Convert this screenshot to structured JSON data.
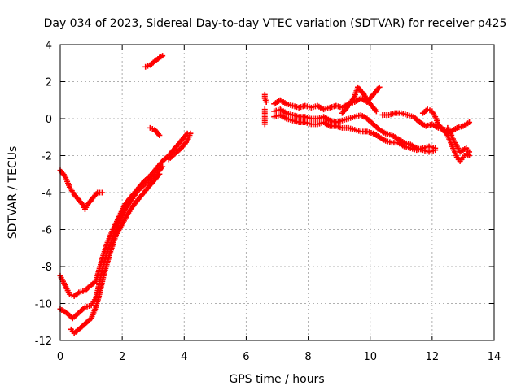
{
  "chart_data": {
    "type": "scatter",
    "title": "Day 034 of 2023, Sidereal Day-to-day VTEC variation (SDTVAR) for receiver p425",
    "xlabel": "GPS time / hours",
    "ylabel": "SDTVAR / TECUs",
    "xlim": [
      0,
      14
    ],
    "ylim": [
      -12,
      4
    ],
    "xticks": [
      0,
      2,
      4,
      6,
      8,
      10,
      12,
      14
    ],
    "yticks": [
      -12,
      -10,
      -8,
      -6,
      -4,
      -2,
      0,
      2,
      4
    ],
    "grid": true,
    "marker": "plus",
    "color": "#ff0000",
    "series": [
      {
        "x": [
          0.0,
          0.15,
          0.3,
          0.45,
          0.6,
          0.75,
          0.8,
          0.9,
          1.05,
          1.2,
          1.35
        ],
        "y": [
          -2.8,
          -3.1,
          -3.7,
          -4.1,
          -4.4,
          -4.7,
          -4.9,
          -4.6,
          -4.3,
          -4.0,
          -4.0
        ]
      },
      {
        "x": [
          0.0,
          0.15,
          0.3,
          0.45,
          0.6,
          0.8,
          1.0,
          1.15,
          1.25,
          1.35,
          1.5,
          1.7,
          1.9,
          2.1,
          2.3,
          2.5,
          2.7,
          2.9,
          3.1,
          3.3,
          3.5,
          3.7,
          3.9,
          4.1
        ],
        "y": [
          -8.5,
          -9.0,
          -9.5,
          -9.6,
          -9.4,
          -9.3,
          -9.0,
          -8.8,
          -8.2,
          -7.6,
          -6.8,
          -6.0,
          -5.3,
          -4.6,
          -4.2,
          -3.8,
          -3.4,
          -3.1,
          -2.7,
          -2.3,
          -2.0,
          -1.6,
          -1.2,
          -0.8
        ]
      },
      {
        "x": [
          0.0,
          0.2,
          0.4,
          0.6,
          0.8,
          1.0,
          1.15,
          1.25,
          1.35,
          1.5,
          1.7,
          1.9,
          2.1,
          2.3,
          2.5,
          2.7,
          2.9,
          3.1,
          3.3
        ],
        "y": [
          -10.3,
          -10.5,
          -10.8,
          -10.5,
          -10.2,
          -10.1,
          -9.7,
          -9.0,
          -8.2,
          -7.3,
          -6.4,
          -5.6,
          -4.9,
          -4.4,
          -3.9,
          -3.6,
          -3.3,
          -3.0,
          -2.6
        ]
      },
      {
        "x": [
          0.35,
          0.45,
          0.6,
          0.8,
          1.0,
          1.15,
          1.25,
          1.4,
          1.6,
          1.8,
          2.0,
          2.2,
          2.4,
          2.6,
          2.8,
          3.0,
          3.2
        ],
        "y": [
          -11.4,
          -11.6,
          -11.4,
          -11.1,
          -10.8,
          -10.2,
          -9.6,
          -8.5,
          -7.3,
          -6.3,
          -5.7,
          -5.1,
          -4.6,
          -4.2,
          -3.8,
          -3.4,
          -3.0
        ]
      },
      {
        "x": [
          3.5,
          3.7,
          3.9,
          4.1,
          4.2
        ],
        "y": [
          -2.2,
          -1.9,
          -1.6,
          -1.2,
          -0.8
        ]
      },
      {
        "x": [
          2.75,
          2.9,
          3.05,
          3.2,
          3.3
        ],
        "y": [
          2.8,
          2.9,
          3.1,
          3.3,
          3.4
        ]
      },
      {
        "x": [
          2.9,
          3.05,
          3.2
        ],
        "y": [
          -0.5,
          -0.6,
          -0.9
        ]
      },
      {
        "x": [
          6.6,
          6.6,
          6.65
        ],
        "y": [
          1.3,
          1.1,
          0.9
        ]
      },
      {
        "x": [
          6.6,
          6.6,
          6.6
        ],
        "y": [
          0.5,
          0.1,
          -0.3
        ]
      },
      {
        "x": [
          6.9,
          7.1,
          7.3,
          7.5,
          7.7,
          7.9,
          8.1,
          8.3,
          8.5,
          8.7,
          8.9,
          9.1,
          9.3,
          9.5,
          9.7,
          9.9,
          10.1,
          10.3
        ],
        "y": [
          0.8,
          1.0,
          0.8,
          0.7,
          0.6,
          0.7,
          0.6,
          0.7,
          0.5,
          0.6,
          0.7,
          0.6,
          0.8,
          0.9,
          1.1,
          0.9,
          1.3,
          1.7
        ]
      },
      {
        "x": [
          6.9,
          7.1,
          7.3,
          7.5,
          7.7,
          7.9,
          8.1,
          8.3,
          8.5,
          8.7,
          8.9,
          9.1,
          9.3,
          9.5,
          9.7,
          9.9,
          10.1,
          10.3,
          10.5,
          10.7,
          10.9,
          11.1,
          11.3,
          11.5,
          11.7,
          11.9,
          12.1
        ],
        "y": [
          0.1,
          0.2,
          0.0,
          -0.1,
          -0.2,
          -0.2,
          -0.3,
          -0.3,
          -0.2,
          -0.4,
          -0.4,
          -0.5,
          -0.5,
          -0.6,
          -0.7,
          -0.7,
          -0.8,
          -1.0,
          -1.2,
          -1.3,
          -1.3,
          -1.5,
          -1.6,
          -1.7,
          -1.6,
          -1.5,
          -1.6
        ]
      },
      {
        "x": [
          6.9,
          7.1,
          7.3,
          7.5,
          7.7,
          7.9,
          8.1,
          8.3,
          8.5,
          8.7,
          8.9,
          9.1,
          9.3,
          9.5,
          9.7,
          9.9,
          10.1,
          10.3,
          10.5,
          10.7,
          10.9,
          11.1,
          11.3,
          11.5,
          11.7,
          11.9,
          12.1
        ],
        "y": [
          0.4,
          0.5,
          0.3,
          0.2,
          0.1,
          0.1,
          0.0,
          0.0,
          0.1,
          -0.1,
          -0.2,
          -0.1,
          0.0,
          0.1,
          0.2,
          0.0,
          -0.3,
          -0.6,
          -0.8,
          -0.9,
          -1.1,
          -1.3,
          -1.4,
          -1.6,
          -1.7,
          -1.8,
          -1.7
        ]
      },
      {
        "x": [
          9.1,
          9.3,
          9.5,
          9.6,
          9.8,
          10.0,
          10.2
        ],
        "y": [
          0.3,
          0.7,
          1.2,
          1.7,
          1.3,
          0.8,
          0.4
        ]
      },
      {
        "x": [
          10.4,
          10.6,
          10.8,
          11.0,
          11.2,
          11.4,
          11.6,
          11.8,
          12.0,
          12.2,
          12.4,
          12.6,
          12.8,
          13.0,
          13.2
        ],
        "y": [
          0.2,
          0.2,
          0.3,
          0.3,
          0.2,
          0.1,
          -0.2,
          -0.4,
          -0.3,
          -0.5,
          -0.6,
          -0.7,
          -0.5,
          -0.4,
          -0.2
        ]
      },
      {
        "x": [
          11.7,
          11.85,
          12.0,
          12.1,
          12.2,
          12.35,
          12.5,
          12.6,
          12.7,
          12.8,
          12.9,
          13.0,
          13.1,
          13.2
        ],
        "y": [
          0.3,
          0.5,
          0.4,
          0.1,
          -0.3,
          -0.6,
          -0.9,
          -1.3,
          -1.7,
          -2.1,
          -2.3,
          -2.1,
          -1.9,
          -2.0
        ]
      },
      {
        "x": [
          12.5,
          12.6,
          12.7,
          12.8,
          12.9,
          13.0,
          13.1,
          13.2
        ],
        "y": [
          -0.5,
          -0.8,
          -1.2,
          -1.5,
          -1.8,
          -1.7,
          -1.6,
          -1.8
        ]
      }
    ]
  }
}
